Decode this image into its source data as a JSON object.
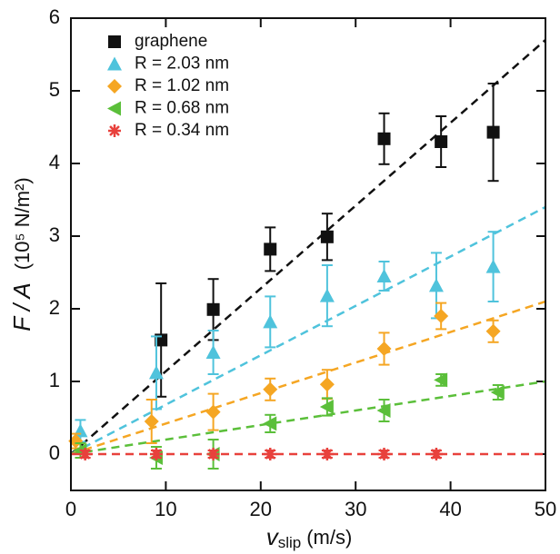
{
  "chart_data": {
    "type": "scatter",
    "xlabel": {
      "main": "v",
      "sub": "slip",
      "unit": "(m/s)"
    },
    "ylabel": {
      "main": "F / A",
      "unit": "(10⁵ N/m²)"
    },
    "xlim": [
      0,
      50
    ],
    "xticks": [
      0,
      10,
      20,
      30,
      40,
      50
    ],
    "ylim": [
      -0.5,
      6
    ],
    "yticks": [
      0,
      1,
      2,
      3,
      4,
      5,
      6
    ],
    "legend": "upper left",
    "series": [
      {
        "name": "graphene",
        "color": "#111111",
        "marker": "square",
        "x": [
          9.5,
          15,
          21,
          27,
          33,
          39,
          44.5
        ],
        "y": [
          1.57,
          1.99,
          2.82,
          2.99,
          4.34,
          4.3,
          4.43
        ],
        "err": [
          0.78,
          0.42,
          0.3,
          0.32,
          0.35,
          0.35,
          0.67
        ],
        "fit": {
          "x": [
            0,
            50
          ],
          "y": [
            0,
            5.7
          ]
        }
      },
      {
        "name": "R = 2.03 nm",
        "color": "#4fc3dc",
        "marker": "triangle-up",
        "x": [
          1,
          9,
          15,
          21,
          27,
          33,
          38.5,
          44.5
        ],
        "y": [
          0.32,
          1.12,
          1.4,
          1.82,
          2.18,
          2.45,
          2.32,
          2.58
        ],
        "err": [
          0.15,
          0.5,
          0.3,
          0.35,
          0.42,
          0.2,
          0.45,
          0.48
        ],
        "fit": {
          "x": [
            0,
            50
          ],
          "y": [
            0,
            3.4
          ]
        }
      },
      {
        "name": "R = 1.02 nm",
        "color": "#f5a623",
        "marker": "diamond",
        "x": [
          0.5,
          8.5,
          15,
          21,
          27,
          33,
          39,
          44.5
        ],
        "y": [
          0.18,
          0.45,
          0.58,
          0.89,
          0.96,
          1.45,
          1.9,
          1.69
        ],
        "err": [
          0.1,
          0.3,
          0.25,
          0.15,
          0.2,
          0.22,
          0.18,
          0.15
        ],
        "fit": {
          "x": [
            0,
            50
          ],
          "y": [
            0,
            2.1
          ]
        }
      },
      {
        "name": "R = 0.68 nm",
        "color": "#5bbf3a",
        "marker": "triangle-left",
        "x": [
          1,
          9,
          15,
          21,
          27,
          33,
          39,
          45
        ],
        "y": [
          0.05,
          -0.05,
          0,
          0.42,
          0.65,
          0.6,
          1.02,
          0.85
        ],
        "err": [
          0.1,
          0.15,
          0.2,
          0.12,
          0.12,
          0.15,
          0.08,
          0.1
        ],
        "fit": {
          "x": [
            0,
            50
          ],
          "y": [
            0,
            1.0
          ]
        }
      },
      {
        "name": "R = 0.34 nm",
        "color": "#e8413c",
        "marker": "star",
        "x": [
          1.5,
          9,
          15,
          21,
          27,
          33,
          38.5
        ],
        "y": [
          0,
          0,
          0,
          0,
          0,
          0,
          0
        ],
        "err": [
          0.05,
          0.05,
          0.05,
          0.05,
          0.05,
          0.05,
          0.05
        ],
        "fit": {
          "x": [
            0,
            50
          ],
          "y": [
            0,
            0
          ]
        }
      }
    ]
  }
}
